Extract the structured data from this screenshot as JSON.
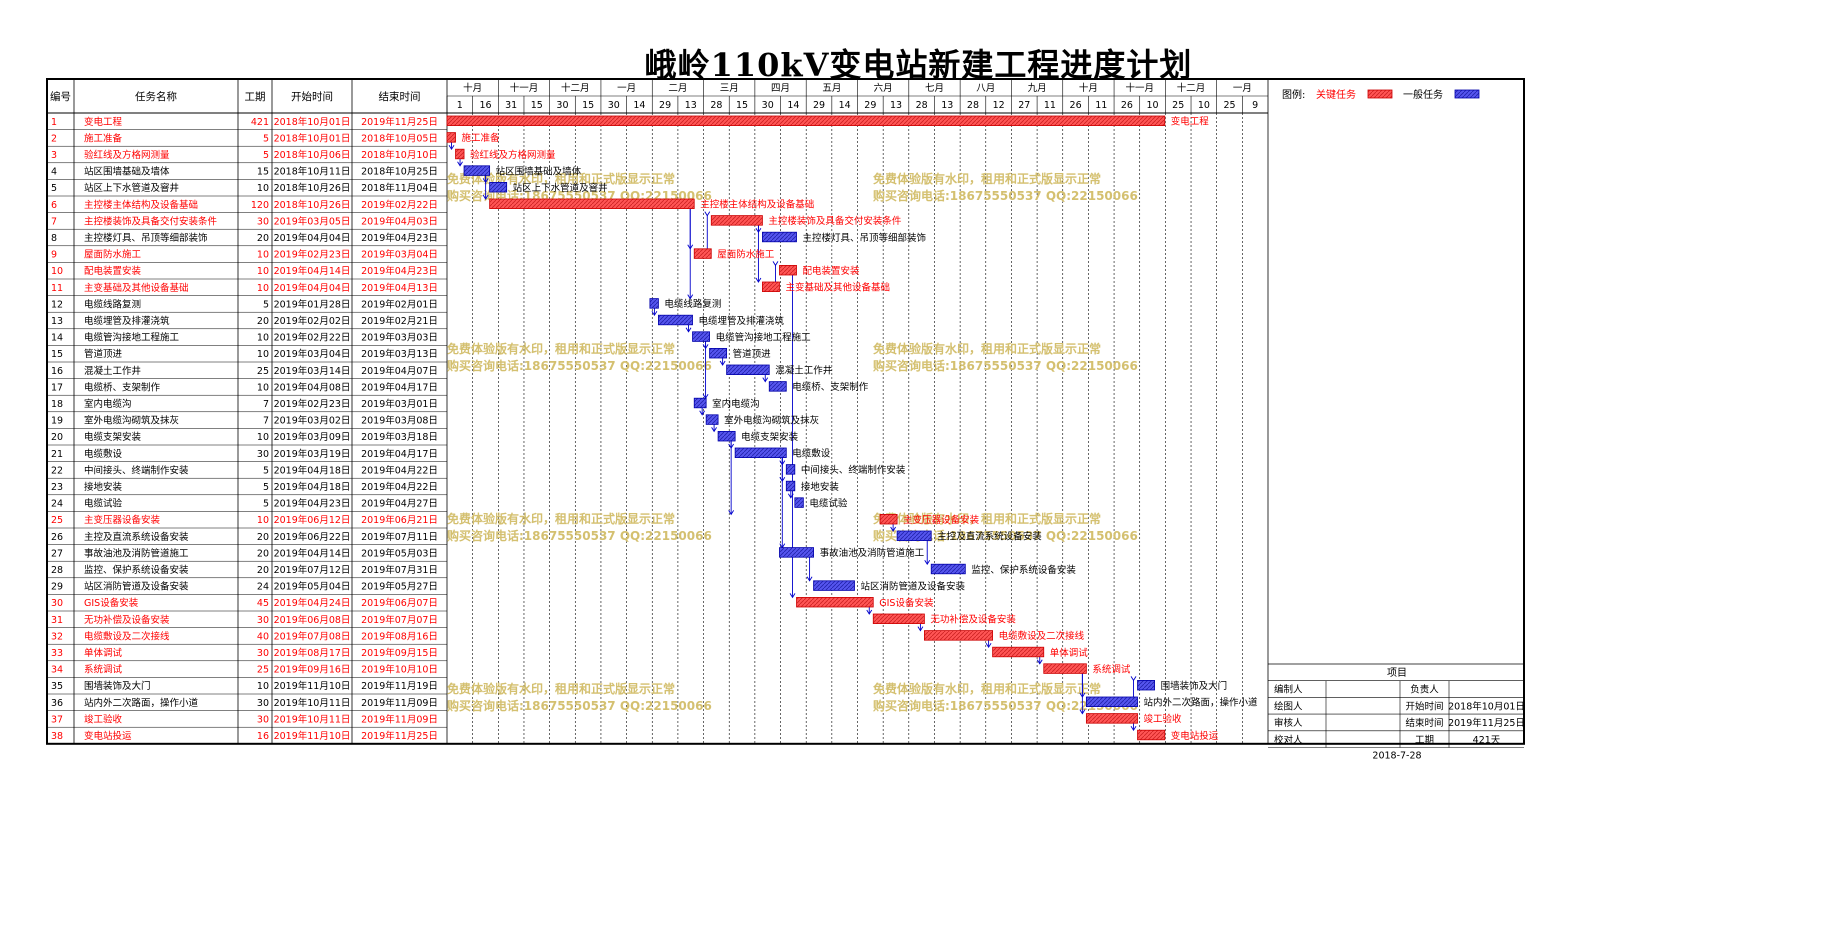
{
  "title": "峨岭110kV变电站新建工程进度计划",
  "headers": {
    "id": "编号",
    "name": "任务名称",
    "dur": "工期",
    "start": "开始时间",
    "end": "结束时间"
  },
  "timeline": {
    "months": [
      "十月",
      "十一月",
      "十二月",
      "一月",
      "二月",
      "三月",
      "四月",
      "五月",
      "六月",
      "七月",
      "八月",
      "九月",
      "十月",
      "十一月",
      "十二月",
      "一月"
    ],
    "ticks": [
      "1",
      "16",
      "31",
      "15",
      "30",
      "15",
      "30",
      "14",
      "29",
      "13",
      "28",
      "15",
      "30",
      "14",
      "29",
      "14",
      "29",
      "13",
      "28",
      "13",
      "28",
      "12",
      "27",
      "11",
      "26",
      "11",
      "26",
      "10",
      "25",
      "10",
      "25",
      "9"
    ]
  },
  "legend": {
    "label": "图例:",
    "critical": "关键任务",
    "normal": "一般任务"
  },
  "colors": {
    "critical": "#ff5555",
    "normal": "#5555ee",
    "critical_text": "#ff0000",
    "watermark": "#d4c070",
    "link": "#0000cc"
  },
  "watermark": {
    "line1": "免费体验版有水印，租用和正式版显示正常",
    "line2": "购买咨询电话:18675550537 QQ:22150066"
  },
  "info": {
    "header": "项目",
    "rows": [
      {
        "k1": "编制人",
        "v1": "",
        "k2": "负责人",
        "v2": ""
      },
      {
        "k1": "绘图人",
        "v1": "",
        "k2": "开始时间",
        "v2": "2018年10月01日"
      },
      {
        "k1": "审核人",
        "v1": "",
        "k2": "结束时间",
        "v2": "2019年11月25日"
      },
      {
        "k1": "校对人",
        "v1": "",
        "k2": "工期",
        "v2": "421天"
      }
    ],
    "date": "2018-7-28"
  },
  "chart_data": {
    "type": "gantt",
    "x_start": "2018-10-01",
    "tasks": [
      {
        "id": "1",
        "name": "变电工程",
        "dur": 421,
        "start": "2018年10月01日",
        "end": "2019年11月25日",
        "critical": true
      },
      {
        "id": "2",
        "name": "施工准备",
        "dur": 5,
        "start": "2018年10月01日",
        "end": "2018年10月05日",
        "critical": true
      },
      {
        "id": "3",
        "name": "验红线及方格网测量",
        "dur": 5,
        "start": "2018年10月06日",
        "end": "2018年10月10日",
        "critical": true
      },
      {
        "id": "4",
        "name": "站区围墙基础及墙体",
        "dur": 15,
        "start": "2018年10月11日",
        "end": "2018年10月25日",
        "critical": false
      },
      {
        "id": "5",
        "name": "站区上下水管道及窨井",
        "dur": 10,
        "start": "2018年10月26日",
        "end": "2018年11月04日",
        "critical": false
      },
      {
        "id": "6",
        "name": "主控楼主体结构及设备基础",
        "dur": 120,
        "start": "2018年10月26日",
        "end": "2019年02月22日",
        "critical": true
      },
      {
        "id": "7",
        "name": "主控楼装饰及具备交付安装条件",
        "dur": 30,
        "start": "2019年03月05日",
        "end": "2019年04月03日",
        "critical": true
      },
      {
        "id": "8",
        "name": "主控楼灯具、吊顶等细部装饰",
        "dur": 20,
        "start": "2019年04月04日",
        "end": "2019年04月23日",
        "critical": false
      },
      {
        "id": "9",
        "name": "屋面防水施工",
        "dur": 10,
        "start": "2019年02月23日",
        "end": "2019年03月04日",
        "critical": true
      },
      {
        "id": "10",
        "name": "配电装置安装",
        "dur": 10,
        "start": "2019年04月14日",
        "end": "2019年04月23日",
        "critical": true
      },
      {
        "id": "11",
        "name": "主变基础及其他设备基础",
        "dur": 10,
        "start": "2019年04月04日",
        "end": "2019年04月13日",
        "critical": true
      },
      {
        "id": "12",
        "name": "电缆线路复测",
        "dur": 5,
        "start": "2019年01月28日",
        "end": "2019年02月01日",
        "critical": false
      },
      {
        "id": "13",
        "name": "电缆埋管及排灌浇筑",
        "dur": 20,
        "start": "2019年02月02日",
        "end": "2019年02月21日",
        "critical": false
      },
      {
        "id": "14",
        "name": "电缆管沟接地工程施工",
        "dur": 10,
        "start": "2019年02月22日",
        "end": "2019年03月03日",
        "critical": false
      },
      {
        "id": "15",
        "name": "管道顶进",
        "dur": 10,
        "start": "2019年03月04日",
        "end": "2019年03月13日",
        "critical": false
      },
      {
        "id": "16",
        "name": "混凝土工作井",
        "dur": 25,
        "start": "2019年03月14日",
        "end": "2019年04月07日",
        "critical": false
      },
      {
        "id": "17",
        "name": "电缆桥、支架制作",
        "dur": 10,
        "start": "2019年04月08日",
        "end": "2019年04月17日",
        "critical": false
      },
      {
        "id": "18",
        "name": "室内电缆沟",
        "dur": 7,
        "start": "2019年02月23日",
        "end": "2019年03月01日",
        "critical": false
      },
      {
        "id": "19",
        "name": "室外电缆沟砌筑及抹灰",
        "dur": 7,
        "start": "2019年03月02日",
        "end": "2019年03月08日",
        "critical": false
      },
      {
        "id": "20",
        "name": "电缆支架安装",
        "dur": 10,
        "start": "2019年03月09日",
        "end": "2019年03月18日",
        "critical": false
      },
      {
        "id": "21",
        "name": "电缆敷设",
        "dur": 30,
        "start": "2019年03月19日",
        "end": "2019年04月17日",
        "critical": false
      },
      {
        "id": "22",
        "name": "中间接头、终端制作安装",
        "dur": 5,
        "start": "2019年04月18日",
        "end": "2019年04月22日",
        "critical": false
      },
      {
        "id": "23",
        "name": "接地安装",
        "dur": 5,
        "start": "2019年04月18日",
        "end": "2019年04月22日",
        "critical": false
      },
      {
        "id": "24",
        "name": "电缆试验",
        "dur": 5,
        "start": "2019年04月23日",
        "end": "2019年04月27日",
        "critical": false
      },
      {
        "id": "25",
        "name": "主变压器设备安装",
        "dur": 10,
        "start": "2019年06月12日",
        "end": "2019年06月21日",
        "critical": true
      },
      {
        "id": "26",
        "name": "主控及直流系统设备安装",
        "dur": 20,
        "start": "2019年06月22日",
        "end": "2019年07月11日",
        "critical": false
      },
      {
        "id": "27",
        "name": "事故油池及消防管道施工",
        "dur": 20,
        "start": "2019年04月14日",
        "end": "2019年05月03日",
        "critical": false
      },
      {
        "id": "28",
        "name": "监控、保护系统设备安装",
        "dur": 20,
        "start": "2019年07月12日",
        "end": "2019年07月31日",
        "critical": false
      },
      {
        "id": "29",
        "name": "站区消防管道及设备安装",
        "dur": 24,
        "start": "2019年05月04日",
        "end": "2019年05月27日",
        "critical": false
      },
      {
        "id": "30",
        "name": "GIS设备安装",
        "dur": 45,
        "start": "2019年04月24日",
        "end": "2019年06月07日",
        "critical": true
      },
      {
        "id": "31",
        "name": "无功补偿及设备安装",
        "dur": 30,
        "start": "2019年06月08日",
        "end": "2019年07月07日",
        "critical": true
      },
      {
        "id": "32",
        "name": "电缆敷设及二次接线",
        "dur": 40,
        "start": "2019年07月08日",
        "end": "2019年08月16日",
        "critical": true
      },
      {
        "id": "33",
        "name": "单体调试",
        "dur": 30,
        "start": "2019年08月17日",
        "end": "2019年09月15日",
        "critical": true
      },
      {
        "id": "34",
        "name": "系统调试",
        "dur": 25,
        "start": "2019年09月16日",
        "end": "2019年10月10日",
        "critical": true
      },
      {
        "id": "35",
        "name": "围墙装饰及大门",
        "dur": 10,
        "start": "2019年11月10日",
        "end": "2019年11月19日",
        "critical": false
      },
      {
        "id": "36",
        "name": "站内外二次路面，操作小道",
        "dur": 30,
        "start": "2019年10月11日",
        "end": "2019年11月09日",
        "critical": false
      },
      {
        "id": "37",
        "name": "竣工验收",
        "dur": 30,
        "start": "2019年10月11日",
        "end": "2019年11月09日",
        "critical": true
      },
      {
        "id": "38",
        "name": "变电站投运",
        "dur": 16,
        "start": "2019年11月10日",
        "end": "2019年11月25日",
        "critical": true
      }
    ],
    "links": [
      [
        2,
        3
      ],
      [
        3,
        4
      ],
      [
        4,
        5
      ],
      [
        4,
        6
      ],
      [
        6,
        9
      ],
      [
        6,
        12
      ],
      [
        9,
        7
      ],
      [
        7,
        8
      ],
      [
        7,
        11
      ],
      [
        11,
        10
      ],
      [
        12,
        13
      ],
      [
        13,
        14
      ],
      [
        14,
        15
      ],
      [
        14,
        18
      ],
      [
        15,
        16
      ],
      [
        16,
        17
      ],
      [
        18,
        19
      ],
      [
        19,
        20
      ],
      [
        20,
        21
      ],
      [
        20,
        25
      ],
      [
        21,
        22
      ],
      [
        21,
        23
      ],
      [
        21,
        27
      ],
      [
        23,
        24
      ],
      [
        25,
        26
      ],
      [
        26,
        28
      ],
      [
        27,
        29
      ],
      [
        10,
        30
      ],
      [
        30,
        31
      ],
      [
        31,
        32
      ],
      [
        32,
        33
      ],
      [
        33,
        34
      ],
      [
        34,
        36
      ],
      [
        34,
        37
      ],
      [
        36,
        35
      ],
      [
        37,
        38
      ]
    ]
  }
}
